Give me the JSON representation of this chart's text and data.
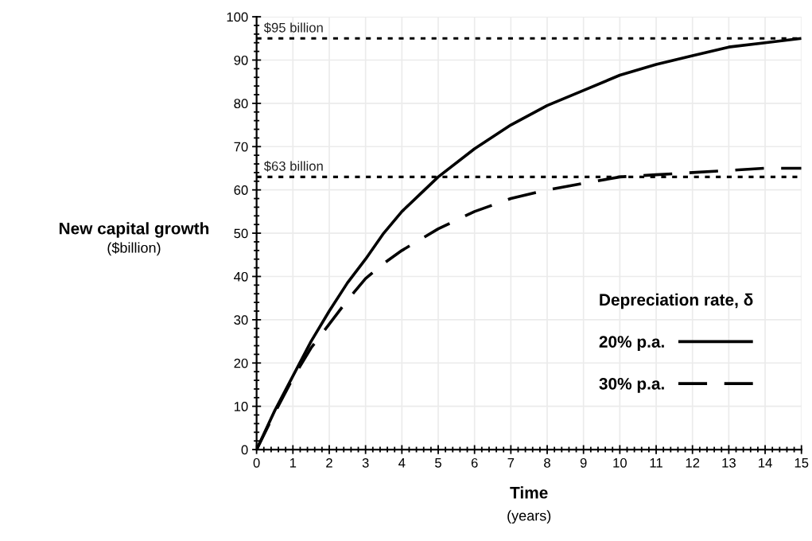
{
  "chart_data": {
    "type": "line",
    "xlabel": "Time\n(years)",
    "ylabel": "New capital growth\n($billion)",
    "legend_title": "Depreciation rate, δ",
    "legend": "bottom right",
    "grid": true,
    "xlim": [
      0,
      15
    ],
    "xticks": [
      0,
      1,
      2,
      3,
      4,
      5,
      6,
      7,
      8,
      9,
      10,
      11,
      12,
      13,
      14,
      15
    ],
    "ylim": [
      0,
      100
    ],
    "yticks": [
      0,
      10,
      20,
      30,
      40,
      50,
      60,
      70,
      80,
      90,
      100
    ],
    "x": [
      0,
      0.5,
      1,
      1.5,
      2,
      2.5,
      3,
      3.5,
      4,
      4.5,
      5,
      6,
      7,
      8,
      9,
      10,
      11,
      12,
      13,
      14,
      15
    ],
    "series": [
      {
        "name": "20% p.a.",
        "color": "#000000",
        "line_style": "solid",
        "values": [
          0,
          9,
          17,
          25,
          32,
          38.5,
          44,
          50,
          55,
          59,
          63,
          69.5,
          75,
          79.5,
          83,
          86.5,
          89,
          91,
          93,
          94,
          95
        ]
      },
      {
        "name": "30% p.a.",
        "color": "#000000",
        "line_style": "dashed",
        "values": [
          0,
          8.5,
          16.5,
          23.5,
          29,
          34.5,
          39.5,
          43,
          46,
          48.5,
          51,
          55,
          58,
          60,
          61.5,
          63,
          63.5,
          64,
          64.5,
          65,
          65
        ]
      }
    ],
    "ref_lines": [
      {
        "axis": "y",
        "value": 95,
        "label": "$95 billion",
        "color": "#000000",
        "line_style": "dotted"
      },
      {
        "axis": "y",
        "value": 63,
        "label": "$63 billion",
        "color": "#000000",
        "line_style": "dotted"
      }
    ]
  }
}
